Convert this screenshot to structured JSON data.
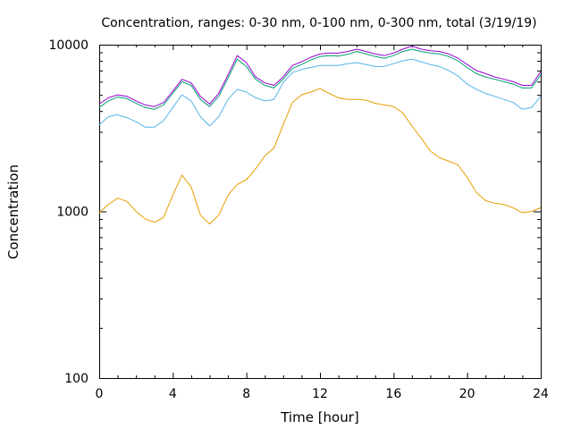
{
  "chart_data": {
    "type": "line",
    "title": "Concentration, ranges: 0-30 nm, 0-100 nm, 0-300 nm, total (3/19/19)",
    "xlabel": "Time [hour]",
    "ylabel": "Concentration",
    "xlim": [
      0,
      24
    ],
    "ylim": [
      100,
      10000
    ],
    "yscale": "log",
    "xticks": [
      "0",
      "4",
      "8",
      "12",
      "16",
      "20",
      "24"
    ],
    "yticks": [
      "100",
      "1000",
      "10000"
    ],
    "grid": false,
    "x": [
      0,
      0.5,
      1,
      1.5,
      2,
      2.5,
      3,
      3.5,
      4,
      4.5,
      5,
      5.5,
      6,
      6.5,
      7,
      7.5,
      8,
      8.5,
      9,
      9.5,
      10,
      10.5,
      11,
      11.5,
      12,
      12.5,
      13,
      13.5,
      14,
      14.5,
      15,
      15.5,
      16,
      16.5,
      17,
      17.5,
      18,
      18.5,
      19,
      19.5,
      20,
      20.5,
      21,
      21.5,
      22,
      22.5,
      23,
      23.5,
      24
    ],
    "series": [
      {
        "color": "#e69f00",
        "values": [
          980,
          1100,
          1200,
          1150,
          1000,
          900,
          860,
          920,
          1250,
          1650,
          1400,
          950,
          840,
          950,
          1250,
          1450,
          1550,
          1800,
          2150,
          2400,
          3300,
          4500,
          5000,
          5200,
          5450,
          5100,
          4800,
          4700,
          4700,
          4650,
          4450,
          4350,
          4250,
          3900,
          3250,
          2750,
          2300,
          2100,
          2000,
          1900,
          1600,
          1300,
          1160,
          1120,
          1100,
          1050,
          980,
          1000,
          1050
        ]
      },
      {
        "color": "#56b4e9",
        "values": [
          3300,
          3700,
          3800,
          3650,
          3450,
          3200,
          3200,
          3500,
          4200,
          5000,
          4600,
          3700,
          3250,
          3700,
          4700,
          5400,
          5200,
          4800,
          4600,
          4700,
          5900,
          6800,
          7100,
          7300,
          7500,
          7500,
          7500,
          7700,
          7800,
          7600,
          7400,
          7400,
          7700,
          8000,
          8200,
          7900,
          7600,
          7400,
          7000,
          6500,
          5800,
          5400,
          5100,
          4900,
          4700,
          4500,
          4100,
          4200,
          4900
        ]
      },
      {
        "color": "#009e73",
        "values": [
          4200,
          4600,
          4850,
          4750,
          4450,
          4200,
          4100,
          4350,
          5100,
          6000,
          5700,
          4700,
          4250,
          4900,
          6300,
          8200,
          7400,
          6200,
          5700,
          5500,
          6200,
          7200,
          7600,
          8100,
          8500,
          8600,
          8550,
          8750,
          9100,
          8800,
          8500,
          8300,
          8600,
          9100,
          9400,
          9100,
          8900,
          8800,
          8500,
          8000,
          7300,
          6700,
          6400,
          6200,
          6000,
          5800,
          5500,
          5500,
          6600
        ]
      },
      {
        "color": "#9400d3",
        "values": [
          4400,
          4800,
          5000,
          4900,
          4600,
          4350,
          4250,
          4500,
          5250,
          6200,
          5900,
          4900,
          4400,
          5100,
          6600,
          8600,
          7800,
          6400,
          5900,
          5700,
          6400,
          7500,
          7900,
          8400,
          8800,
          8900,
          8900,
          9100,
          9400,
          9100,
          8800,
          8600,
          8900,
          9400,
          9800,
          9400,
          9200,
          9100,
          8800,
          8300,
          7600,
          7000,
          6700,
          6400,
          6200,
          6000,
          5700,
          5700,
          6900
        ]
      }
    ]
  }
}
